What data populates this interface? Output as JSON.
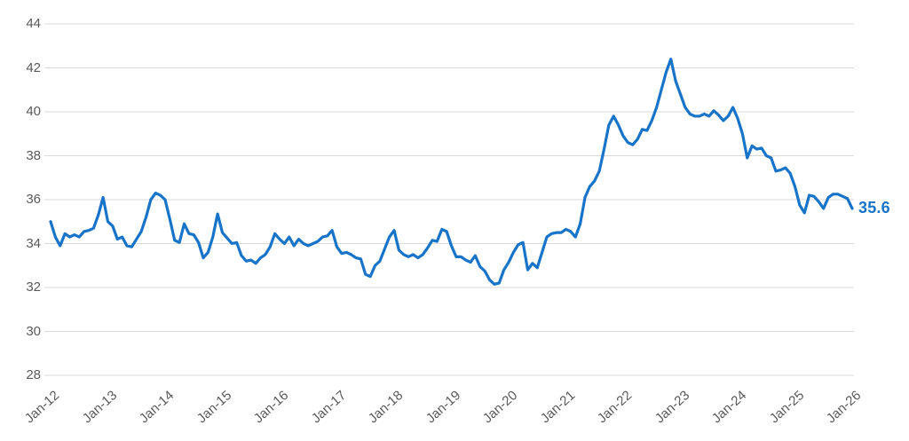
{
  "chart_data": {
    "type": "line",
    "title": "",
    "legend": "none",
    "grid": "horizontal",
    "x_frequency": "monthly",
    "x_range": [
      "Jan-12",
      "Jan-26"
    ],
    "x_tick_labels": [
      "Jan-12",
      "Jan-13",
      "Jan-14",
      "Jan-15",
      "Jan-16",
      "Jan-17",
      "Jan-18",
      "Jan-19",
      "Jan-20",
      "Jan-21",
      "Jan-22",
      "Jan-23",
      "Jan-24",
      "Jan-25",
      "Jan-26"
    ],
    "y_ticks": [
      44,
      42,
      40,
      38,
      36,
      34,
      32,
      30,
      28
    ],
    "ylim": [
      28,
      44
    ],
    "line_color": "#1874C8",
    "grid_color": "#D9D9D9",
    "axis_text_color": "#595959",
    "end_label": "35.6",
    "end_label_color": "#1874C8",
    "series": [
      {
        "name": "value",
        "start": "Jan-12",
        "values": [
          35.0,
          34.3,
          33.9,
          34.45,
          34.3,
          34.4,
          34.3,
          34.55,
          34.6,
          34.7,
          35.3,
          36.1,
          35.0,
          34.8,
          34.2,
          34.3,
          33.9,
          33.85,
          34.2,
          34.55,
          35.2,
          36.0,
          36.3,
          36.2,
          36.0,
          35.1,
          34.15,
          34.05,
          34.9,
          34.45,
          34.4,
          34.05,
          33.35,
          33.6,
          34.3,
          35.35,
          34.5,
          34.25,
          34.0,
          34.05,
          33.45,
          33.2,
          33.25,
          33.1,
          33.35,
          33.5,
          33.85,
          34.45,
          34.2,
          34.0,
          34.3,
          33.9,
          34.2,
          34.0,
          33.9,
          34.0,
          34.1,
          34.3,
          34.35,
          34.6,
          33.85,
          33.55,
          33.6,
          33.5,
          33.35,
          33.3,
          32.6,
          32.5,
          33.0,
          33.2,
          33.75,
          34.3,
          34.6,
          33.7,
          33.5,
          33.4,
          33.5,
          33.35,
          33.5,
          33.8,
          34.15,
          34.1,
          34.65,
          34.55,
          33.9,
          33.4,
          33.4,
          33.25,
          33.15,
          33.45,
          32.95,
          32.75,
          32.35,
          32.15,
          32.2,
          32.8,
          33.15,
          33.6,
          33.95,
          34.05,
          32.8,
          33.1,
          32.9,
          33.6,
          34.3,
          34.45,
          34.5,
          34.5,
          34.65,
          34.55,
          34.3,
          34.9,
          36.1,
          36.6,
          36.85,
          37.3,
          38.3,
          39.4,
          39.8,
          39.4,
          38.9,
          38.6,
          38.5,
          38.75,
          39.2,
          39.15,
          39.6,
          40.2,
          41.0,
          41.8,
          42.4,
          41.4,
          40.8,
          40.2,
          39.9,
          39.8,
          39.8,
          39.9,
          39.8,
          40.05,
          39.85,
          39.6,
          39.8,
          40.2,
          39.7,
          39.0,
          37.9,
          38.45,
          38.3,
          38.35,
          38.0,
          37.9,
          37.3,
          37.35,
          37.45,
          37.2,
          36.6,
          35.75,
          35.4,
          36.2,
          36.15,
          35.9,
          35.6,
          36.1,
          36.25,
          36.25,
          36.15,
          36.05,
          35.6
        ]
      }
    ]
  }
}
